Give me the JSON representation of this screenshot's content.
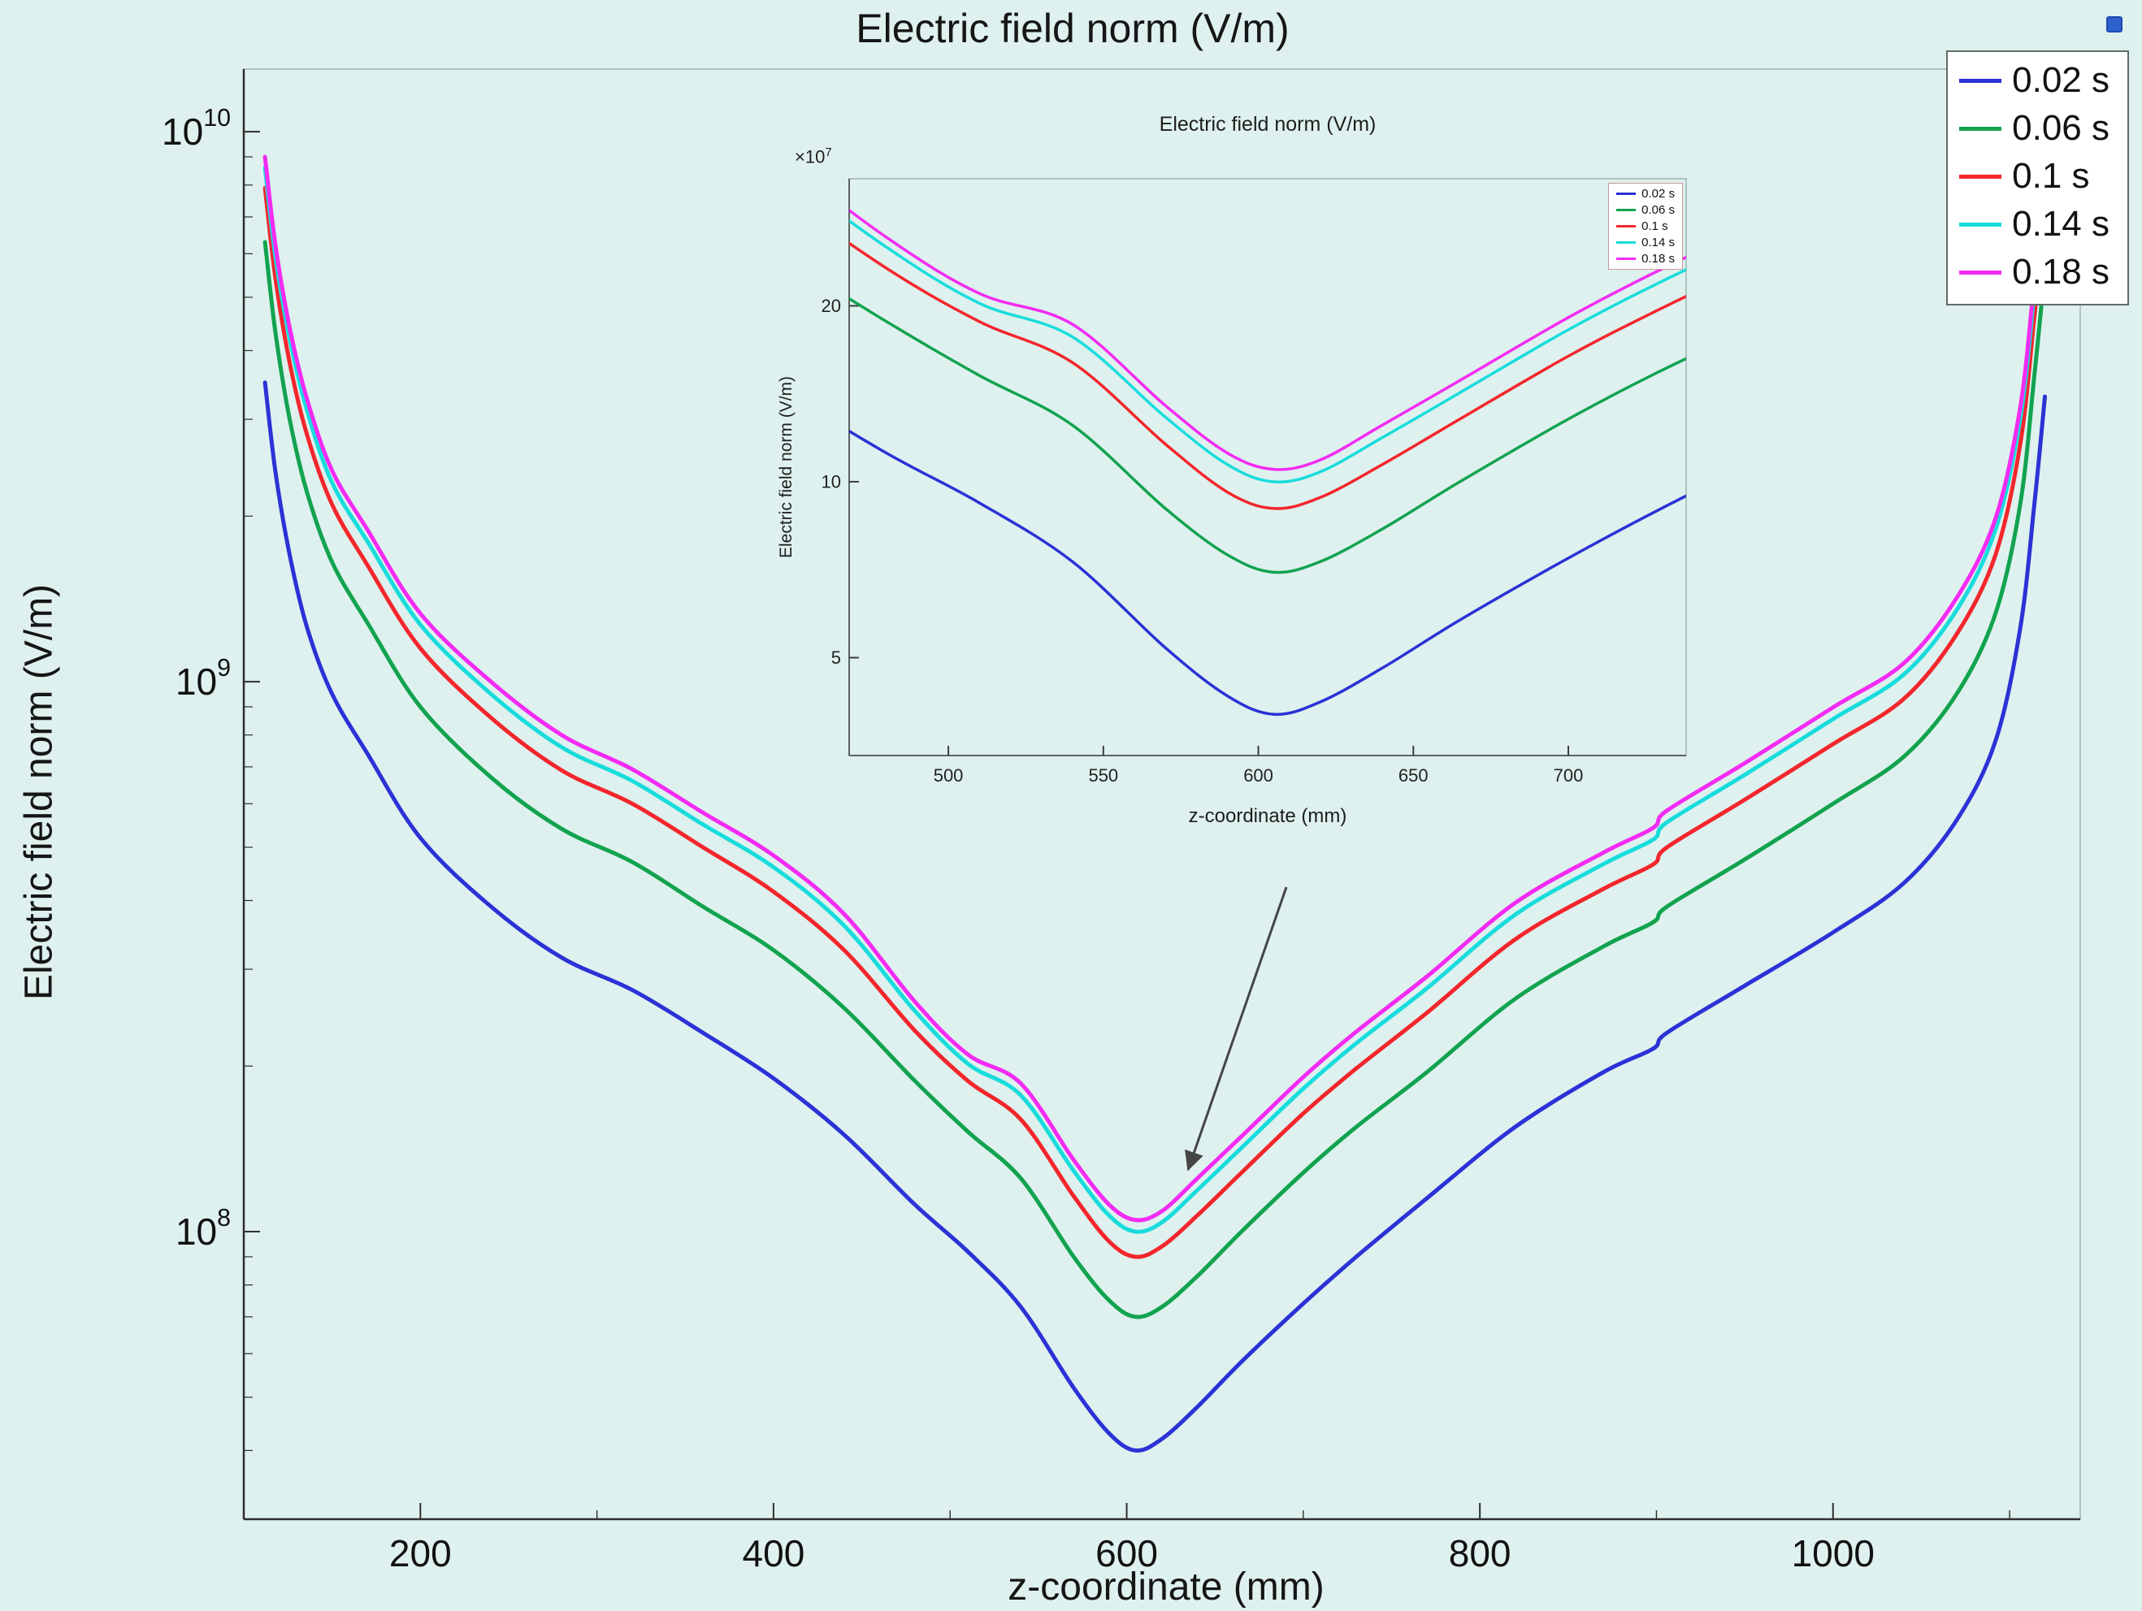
{
  "page": {
    "background": "#def1ee"
  },
  "window": {
    "corner_icon": "dock-icon",
    "corner_icon_color": "#2e62cc"
  },
  "chart_data": {
    "type": "line",
    "title": "Electric field norm (V/m)",
    "xlabel": "z-coordinate (mm)",
    "ylabel": "Electric field norm (V/m)",
    "grid": false,
    "legend_position": "top-right",
    "x_axis": {
      "min": 100,
      "max": 1140,
      "ticks": [
        200,
        400,
        600,
        800,
        1000
      ]
    },
    "y_axis": {
      "scale": "log",
      "min": 30000000.0,
      "max": 13000000000.0,
      "tick_exponents": [
        8,
        9,
        10
      ]
    },
    "x": [
      112,
      118,
      126,
      136,
      150,
      170,
      200,
      240,
      280,
      320,
      360,
      400,
      440,
      480,
      510,
      540,
      570,
      590,
      605,
      620,
      640,
      665,
      700,
      730,
      770,
      820,
      870,
      898,
      906,
      950,
      1000,
      1040,
      1070,
      1092,
      1106,
      1114,
      1120
    ],
    "series": [
      {
        "name": "0.02 s",
        "color": "#2b32d6",
        "values": [
          3500000000.0,
          2400000000.0,
          1700000000.0,
          1250000000.0,
          950000000.0,
          740000000.0,
          520000000.0,
          390000000.0,
          315000000.0,
          275000000.0,
          230000000.0,
          190000000.0,
          150000000.0,
          112000000.0,
          92000000.0,
          73000000.0,
          52000000.0,
          43000000.0,
          40000000.0,
          42000000.0,
          48000000.0,
          58000000.0,
          74000000.0,
          90000000.0,
          115000000.0,
          155000000.0,
          195000000.0,
          215000000.0,
          230000000.0,
          280000000.0,
          350000000.0,
          430000000.0,
          560000000.0,
          780000000.0,
          1250000000.0,
          2100000000.0,
          3300000000.0
        ]
      },
      {
        "name": "0.06 s",
        "color": "#12a34f",
        "values": [
          6300000000.0,
          4300000000.0,
          3000000000.0,
          2200000000.0,
          1650000000.0,
          1280000000.0,
          900000000.0,
          670000000.0,
          540000000.0,
          470000000.0,
          390000000.0,
          325000000.0,
          255000000.0,
          188000000.0,
          152000000.0,
          125000000.0,
          90000000.0,
          75000000.0,
          70000000.0,
          73000000.0,
          83000000.0,
          100000000.0,
          128000000.0,
          155000000.0,
          195000000.0,
          265000000.0,
          330000000.0,
          365000000.0,
          390000000.0,
          475000000.0,
          600000000.0,
          730000000.0,
          950000000.0,
          1330000000.0,
          2100000000.0,
          3600000000.0,
          5600000000.0
        ]
      },
      {
        "name": "0.1 s",
        "color": "#f3262c",
        "values": [
          7900000000.0,
          5400000000.0,
          3800000000.0,
          2800000000.0,
          2100000000.0,
          1630000000.0,
          1150000000.0,
          860000000.0,
          690000000.0,
          600000000.0,
          500000000.0,
          415000000.0,
          325000000.0,
          232000000.0,
          188000000.0,
          160000000.0,
          116000000.0,
          96000000.0,
          90000000.0,
          94000000.0,
          107000000.0,
          128000000.0,
          164000000.0,
          198000000.0,
          250000000.0,
          340000000.0,
          420000000.0,
          465000000.0,
          500000000.0,
          610000000.0,
          770000000.0,
          930000000.0,
          1220000000.0,
          1700000000.0,
          2700000000.0,
          4600000000.0,
          7100000000.0
        ]
      },
      {
        "name": "0.14 s",
        "color": "#18dcdc",
        "values": [
          8600000000.0,
          5900000000.0,
          4200000000.0,
          3100000000.0,
          2300000000.0,
          1800000000.0,
          1270000000.0,
          950000000.0,
          760000000.0,
          660000000.0,
          550000000.0,
          460000000.0,
          360000000.0,
          252000000.0,
          202000000.0,
          177000000.0,
          129000000.0,
          107000000.0,
          100000000.0,
          104000000.0,
          119000000.0,
          142000000.0,
          182000000.0,
          220000000.0,
          277000000.0,
          377000000.0,
          466000000.0,
          516000000.0,
          555000000.0,
          677000000.0,
          855000000.0,
          1030000000.0,
          1350000000.0,
          1890000000.0,
          3000000000.0,
          5100000000.0,
          7900000000.0
        ]
      },
      {
        "name": "0.18 s",
        "color": "#f32bf3",
        "values": [
          9000000000.0,
          6200000000.0,
          4400000000.0,
          3250000000.0,
          2420000000.0,
          1890000000.0,
          1330000000.0,
          1000000000.0,
          800000000.0,
          693000000.0,
          578000000.0,
          483000000.0,
          378000000.0,
          262000000.0,
          210000000.0,
          186000000.0,
          135000000.0,
          112000000.0,
          105000000.0,
          109000000.0,
          125000000.0,
          149000000.0,
          191000000.0,
          231000000.0,
          291000000.0,
          396000000.0,
          489000000.0,
          542000000.0,
          583000000.0,
          711000000.0,
          898000000.0,
          1080000000.0,
          1420000000.0,
          1980000000.0,
          3150000000.0,
          5360000000.0,
          8300000000.0
        ]
      }
    ],
    "inset": {
      "title": "Electric field norm (V/m)",
      "xlabel": "z-coordinate (mm)",
      "ylabel": "Electric field norm (V/m)",
      "multiplier_base": "×10",
      "multiplier_exp": "7",
      "x_axis": {
        "min": 468,
        "max": 738,
        "ticks": [
          500,
          550,
          600,
          650,
          700
        ]
      },
      "y_axis": {
        "scale": "log",
        "min": 34000000.0,
        "max": 330000000.0,
        "ticks": [
          {
            "label": "5",
            "value": 50000000.0
          },
          {
            "label": "10",
            "value": 100000000.0
          },
          {
            "label": "20",
            "value": 200000000.0
          }
        ]
      }
    }
  }
}
